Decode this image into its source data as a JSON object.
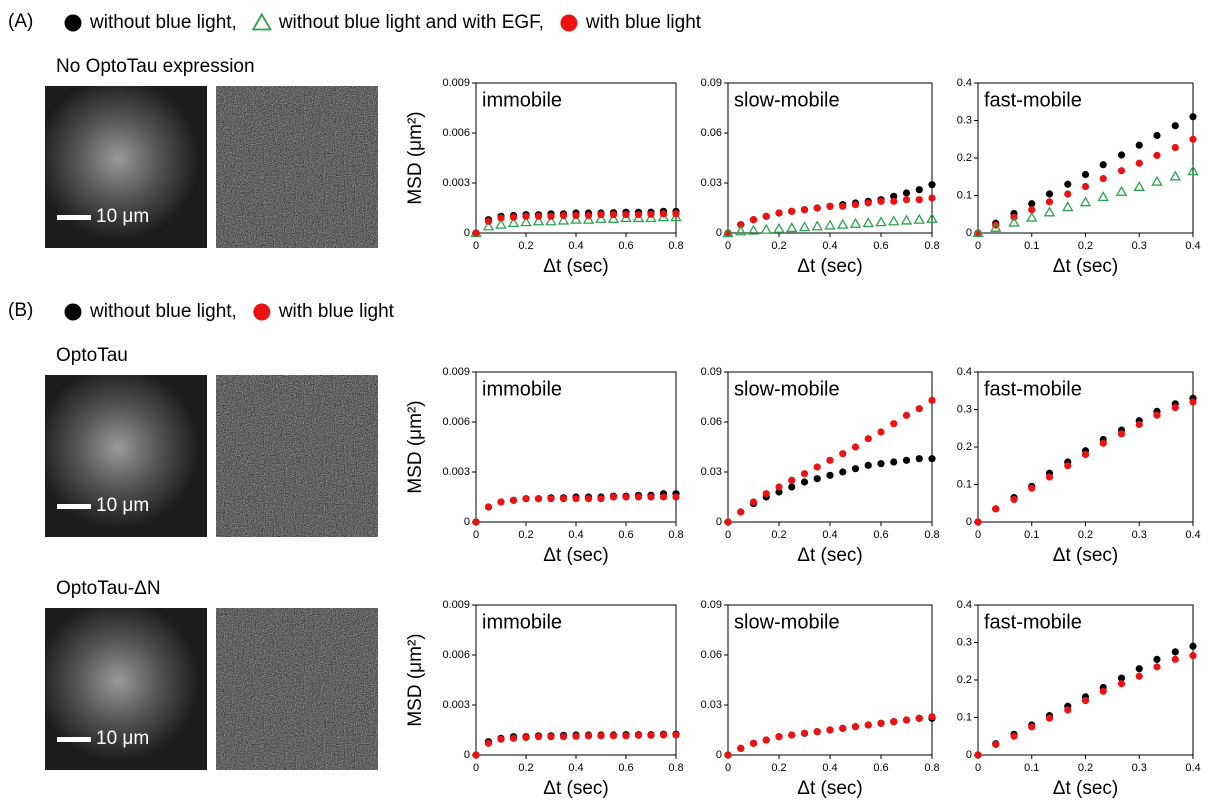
{
  "figure": {
    "panels": [
      {
        "label": "(A)",
        "legend": [
          {
            "text": "without blue light,",
            "color": "#000000",
            "marker": "circle"
          },
          {
            "text": "without blue light and with EGF,",
            "color": "#2ca24c",
            "marker": "triangle"
          },
          {
            "text": "with blue light",
            "color": "#ee1111",
            "marker": "circle"
          }
        ],
        "rows": [
          {
            "label": "No OptoTau expression",
            "scale_bar": "10 μm"
          }
        ]
      },
      {
        "label": "(B)",
        "legend": [
          {
            "text": "without blue light,",
            "color": "#000000",
            "marker": "circle"
          },
          {
            "text": "with blue light",
            "color": "#ee1111",
            "marker": "circle"
          }
        ],
        "rows": [
          {
            "label": "OptoTau",
            "scale_bar": "10 μm"
          },
          {
            "label": "OptoTau-ΔN",
            "scale_bar": "10 μm"
          }
        ]
      }
    ]
  },
  "chart_data": [
    {
      "type": "scatter",
      "title": "immobile",
      "y_label": "MSD (μm²)",
      "x_label": "Δt (sec)",
      "x": [
        0,
        0.05,
        0.1,
        0.15,
        0.2,
        0.25,
        0.3,
        0.35,
        0.4,
        0.45,
        0.5,
        0.55,
        0.6,
        0.65,
        0.7,
        0.75,
        0.8
      ],
      "xlim": [
        0,
        0.8
      ],
      "xticks": [
        0,
        0.2,
        0.4,
        0.6,
        0.8
      ],
      "ylim": [
        0,
        0.009
      ],
      "yticks": [
        0,
        0.003,
        0.006,
        0.009
      ],
      "series": [
        {
          "color": "#000000",
          "marker": "circle",
          "values": [
            0,
            0.0008,
            0.001,
            0.00105,
            0.0011,
            0.0011,
            0.00115,
            0.00115,
            0.0012,
            0.0012,
            0.0012,
            0.00122,
            0.00125,
            0.00125,
            0.00125,
            0.0013,
            0.0013
          ]
        },
        {
          "color": "#2ca24c",
          "marker": "triangle",
          "values": [
            0,
            0.0004,
            0.0005,
            0.0006,
            0.00065,
            0.0007,
            0.0007,
            0.00075,
            0.0008,
            0.0008,
            0.00085,
            0.00085,
            0.0009,
            0.0009,
            0.0009,
            0.00095,
            0.00095
          ]
        },
        {
          "color": "#ee1111",
          "marker": "circle",
          "values": [
            0,
            0.0007,
            0.0009,
            0.00095,
            0.001,
            0.001,
            0.001,
            0.00105,
            0.00105,
            0.00105,
            0.0011,
            0.0011,
            0.0011,
            0.0011,
            0.00112,
            0.00115,
            0.00115
          ]
        }
      ]
    },
    {
      "type": "scatter",
      "title": "slow-mobile",
      "x_label": "Δt (sec)",
      "x": [
        0,
        0.05,
        0.1,
        0.15,
        0.2,
        0.25,
        0.3,
        0.35,
        0.4,
        0.45,
        0.5,
        0.55,
        0.6,
        0.65,
        0.7,
        0.75,
        0.8
      ],
      "xlim": [
        0,
        0.8
      ],
      "xticks": [
        0,
        0.2,
        0.4,
        0.6,
        0.8
      ],
      "ylim": [
        0,
        0.09
      ],
      "yticks": [
        0,
        0.03,
        0.06,
        0.09
      ],
      "series": [
        {
          "color": "#000000",
          "marker": "circle",
          "values": [
            0,
            0.005,
            0.008,
            0.01,
            0.012,
            0.013,
            0.014,
            0.015,
            0.016,
            0.017,
            0.018,
            0.019,
            0.02,
            0.022,
            0.024,
            0.026,
            0.029
          ]
        },
        {
          "color": "#ee1111",
          "marker": "circle",
          "values": [
            0,
            0.005,
            0.008,
            0.01,
            0.012,
            0.013,
            0.014,
            0.015,
            0.016,
            0.016,
            0.017,
            0.018,
            0.019,
            0.019,
            0.02,
            0.02,
            0.021
          ]
        },
        {
          "color": "#2ca24c",
          "marker": "triangle",
          "values": [
            0,
            0.001,
            0.0015,
            0.002,
            0.0025,
            0.003,
            0.0035,
            0.004,
            0.0045,
            0.005,
            0.0055,
            0.006,
            0.0065,
            0.007,
            0.0075,
            0.008,
            0.0085
          ]
        }
      ]
    },
    {
      "type": "scatter",
      "title": "fast-mobile",
      "x_label": "Δt (sec)",
      "x": [
        0,
        0.033,
        0.067,
        0.1,
        0.133,
        0.167,
        0.2,
        0.233,
        0.267,
        0.3,
        0.333,
        0.367,
        0.4
      ],
      "xlim": [
        0,
        0.4
      ],
      "xticks": [
        0,
        0.1,
        0.2,
        0.3,
        0.4
      ],
      "ylim": [
        0,
        0.4
      ],
      "yticks": [
        0,
        0.1,
        0.2,
        0.3,
        0.4
      ],
      "series": [
        {
          "color": "#000000",
          "marker": "circle",
          "values": [
            0,
            0.026,
            0.052,
            0.078,
            0.104,
            0.13,
            0.156,
            0.182,
            0.208,
            0.234,
            0.26,
            0.286,
            0.31
          ]
        },
        {
          "color": "#ee1111",
          "marker": "circle",
          "values": [
            0,
            0.021,
            0.042,
            0.062,
            0.083,
            0.104,
            0.124,
            0.145,
            0.166,
            0.186,
            0.207,
            0.228,
            0.25
          ]
        },
        {
          "color": "#2ca24c",
          "marker": "triangle",
          "values": [
            0,
            0.014,
            0.028,
            0.041,
            0.055,
            0.069,
            0.082,
            0.096,
            0.11,
            0.123,
            0.137,
            0.151,
            0.165
          ]
        }
      ]
    },
    {
      "type": "scatter",
      "title": "immobile",
      "y_label": "MSD (μm²)",
      "x_label": "Δt (sec)",
      "x": [
        0,
        0.05,
        0.1,
        0.15,
        0.2,
        0.25,
        0.3,
        0.35,
        0.4,
        0.45,
        0.5,
        0.55,
        0.6,
        0.65,
        0.7,
        0.75,
        0.8
      ],
      "xlim": [
        0,
        0.8
      ],
      "xticks": [
        0,
        0.2,
        0.4,
        0.6,
        0.8
      ],
      "ylim": [
        0,
        0.009
      ],
      "yticks": [
        0,
        0.003,
        0.006,
        0.009
      ],
      "series": [
        {
          "color": "#000000",
          "marker": "circle",
          "values": [
            0,
            0.0009,
            0.0012,
            0.0013,
            0.0014,
            0.0014,
            0.00145,
            0.00145,
            0.0015,
            0.0015,
            0.0015,
            0.00155,
            0.00155,
            0.0016,
            0.0016,
            0.0017,
            0.0017
          ]
        },
        {
          "color": "#ee1111",
          "marker": "circle",
          "values": [
            0,
            0.0009,
            0.0012,
            0.0013,
            0.0014,
            0.0014,
            0.0014,
            0.0014,
            0.0014,
            0.0014,
            0.0014,
            0.0015,
            0.0015,
            0.0015,
            0.0015,
            0.0015,
            0.0015
          ]
        }
      ]
    },
    {
      "type": "scatter",
      "title": "slow-mobile",
      "x_label": "Δt (sec)",
      "x": [
        0,
        0.05,
        0.1,
        0.15,
        0.2,
        0.25,
        0.3,
        0.35,
        0.4,
        0.45,
        0.5,
        0.55,
        0.6,
        0.65,
        0.7,
        0.75,
        0.8
      ],
      "xlim": [
        0,
        0.8
      ],
      "xticks": [
        0,
        0.2,
        0.4,
        0.6,
        0.8
      ],
      "ylim": [
        0,
        0.09
      ],
      "yticks": [
        0,
        0.03,
        0.06,
        0.09
      ],
      "series": [
        {
          "color": "#000000",
          "marker": "circle",
          "values": [
            0,
            0.006,
            0.011,
            0.015,
            0.018,
            0.021,
            0.024,
            0.026,
            0.028,
            0.03,
            0.032,
            0.034,
            0.035,
            0.036,
            0.037,
            0.038,
            0.038
          ]
        },
        {
          "color": "#ee1111",
          "marker": "circle",
          "values": [
            0,
            0.006,
            0.012,
            0.017,
            0.021,
            0.025,
            0.029,
            0.033,
            0.037,
            0.041,
            0.045,
            0.05,
            0.054,
            0.059,
            0.064,
            0.068,
            0.073
          ]
        }
      ]
    },
    {
      "type": "scatter",
      "title": "fast-mobile",
      "x_label": "Δt (sec)",
      "x": [
        0,
        0.033,
        0.067,
        0.1,
        0.133,
        0.167,
        0.2,
        0.233,
        0.267,
        0.3,
        0.333,
        0.367,
        0.4
      ],
      "xlim": [
        0,
        0.4
      ],
      "xticks": [
        0,
        0.1,
        0.2,
        0.3,
        0.4
      ],
      "ylim": [
        0,
        0.4
      ],
      "yticks": [
        0,
        0.1,
        0.2,
        0.3,
        0.4
      ],
      "series": [
        {
          "color": "#000000",
          "marker": "circle",
          "values": [
            0,
            0.035,
            0.065,
            0.095,
            0.13,
            0.16,
            0.19,
            0.22,
            0.245,
            0.27,
            0.295,
            0.315,
            0.33
          ]
        },
        {
          "color": "#ee1111",
          "marker": "circle",
          "values": [
            0,
            0.035,
            0.06,
            0.09,
            0.12,
            0.15,
            0.18,
            0.21,
            0.235,
            0.26,
            0.285,
            0.305,
            0.32
          ]
        }
      ]
    },
    {
      "type": "scatter",
      "title": "immobile",
      "y_label": "MSD (μm²)",
      "x_label": "Δt (sec)",
      "x": [
        0,
        0.05,
        0.1,
        0.15,
        0.2,
        0.25,
        0.3,
        0.35,
        0.4,
        0.45,
        0.5,
        0.55,
        0.6,
        0.65,
        0.7,
        0.75,
        0.8
      ],
      "xlim": [
        0,
        0.8
      ],
      "xticks": [
        0,
        0.2,
        0.4,
        0.6,
        0.8
      ],
      "ylim": [
        0,
        0.009
      ],
      "yticks": [
        0,
        0.003,
        0.006,
        0.009
      ],
      "series": [
        {
          "color": "#000000",
          "marker": "circle",
          "values": [
            0,
            0.0008,
            0.001,
            0.0011,
            0.0011,
            0.00115,
            0.00115,
            0.00118,
            0.0012,
            0.0012,
            0.0012,
            0.0012,
            0.00122,
            0.00122,
            0.00122,
            0.00125,
            0.00125
          ]
        },
        {
          "color": "#ee1111",
          "marker": "circle",
          "values": [
            0,
            0.0007,
            0.00095,
            0.001,
            0.00105,
            0.0011,
            0.0011,
            0.0011,
            0.00112,
            0.00115,
            0.00115,
            0.00115,
            0.00115,
            0.00118,
            0.00118,
            0.0012,
            0.0012
          ]
        }
      ]
    },
    {
      "type": "scatter",
      "title": "slow-mobile",
      "x_label": "Δt (sec)",
      "x": [
        0,
        0.05,
        0.1,
        0.15,
        0.2,
        0.25,
        0.3,
        0.35,
        0.4,
        0.45,
        0.5,
        0.55,
        0.6,
        0.65,
        0.7,
        0.75,
        0.8
      ],
      "xlim": [
        0,
        0.8
      ],
      "xticks": [
        0,
        0.2,
        0.4,
        0.6,
        0.8
      ],
      "ylim": [
        0,
        0.09
      ],
      "yticks": [
        0,
        0.03,
        0.06,
        0.09
      ],
      "series": [
        {
          "color": "#000000",
          "marker": "circle",
          "values": [
            0,
            0.004,
            0.007,
            0.009,
            0.011,
            0.012,
            0.013,
            0.014,
            0.015,
            0.016,
            0.017,
            0.018,
            0.019,
            0.02,
            0.021,
            0.022,
            0.022
          ]
        },
        {
          "color": "#ee1111",
          "marker": "circle",
          "values": [
            0,
            0.004,
            0.007,
            0.009,
            0.011,
            0.012,
            0.013,
            0.014,
            0.015,
            0.016,
            0.017,
            0.018,
            0.019,
            0.02,
            0.021,
            0.022,
            0.023
          ]
        }
      ]
    },
    {
      "type": "scatter",
      "title": "fast-mobile",
      "x_label": "Δt (sec)",
      "x": [
        0,
        0.033,
        0.067,
        0.1,
        0.133,
        0.167,
        0.2,
        0.233,
        0.267,
        0.3,
        0.333,
        0.367,
        0.4
      ],
      "xlim": [
        0,
        0.4
      ],
      "xticks": [
        0,
        0.1,
        0.2,
        0.3,
        0.4
      ],
      "ylim": [
        0,
        0.4
      ],
      "yticks": [
        0,
        0.1,
        0.2,
        0.3,
        0.4
      ],
      "series": [
        {
          "color": "#000000",
          "marker": "circle",
          "values": [
            0,
            0.03,
            0.055,
            0.08,
            0.105,
            0.13,
            0.155,
            0.18,
            0.205,
            0.23,
            0.255,
            0.275,
            0.29
          ]
        },
        {
          "color": "#ee1111",
          "marker": "circle",
          "values": [
            0,
            0.028,
            0.05,
            0.075,
            0.098,
            0.12,
            0.145,
            0.17,
            0.19,
            0.21,
            0.235,
            0.255,
            0.265
          ]
        }
      ]
    }
  ]
}
